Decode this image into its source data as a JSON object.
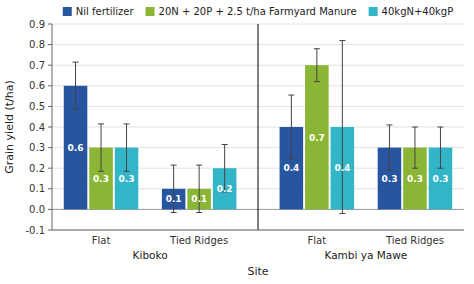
{
  "chart_data": {
    "type": "bar",
    "xlabel": "Site",
    "ylabel": "Grain yield (t/ha)",
    "categories": [
      "Flat",
      "Tied Ridges",
      "Flat",
      "Tied Ridges"
    ],
    "site_labels": [
      "Kiboko",
      "Kambi ya Mawe"
    ],
    "series": [
      {
        "name": "Nil fertilizer",
        "color": "#2855a0",
        "values": [
          0.6,
          0.1,
          0.4,
          0.3
        ],
        "errors": [
          0.115,
          0.115,
          0.155,
          0.11
        ]
      },
      {
        "name": "20N + 20P + 2.5 t/ha Farmyard Manure",
        "color": "#8ab535",
        "values": [
          0.3,
          0.1,
          0.7,
          0.3
        ],
        "errors": [
          0.115,
          0.115,
          0.08,
          0.1
        ]
      },
      {
        "name": "40kgN+40kgP",
        "color": "#33b5c8",
        "values": [
          0.3,
          0.2,
          0.4,
          0.3
        ],
        "errors": [
          0.115,
          0.115,
          0.42,
          0.1
        ]
      }
    ],
    "ylim": [
      -0.1,
      0.9
    ],
    "yticks": [
      -0.1,
      {
        "value": 0,
        "label": "0.0"
      },
      0.1,
      0.2,
      0.3,
      0.4,
      0.5,
      0.6,
      0.7,
      0.8,
      0.9
    ],
    "grid": true,
    "legend": "top",
    "data_labels": true
  }
}
